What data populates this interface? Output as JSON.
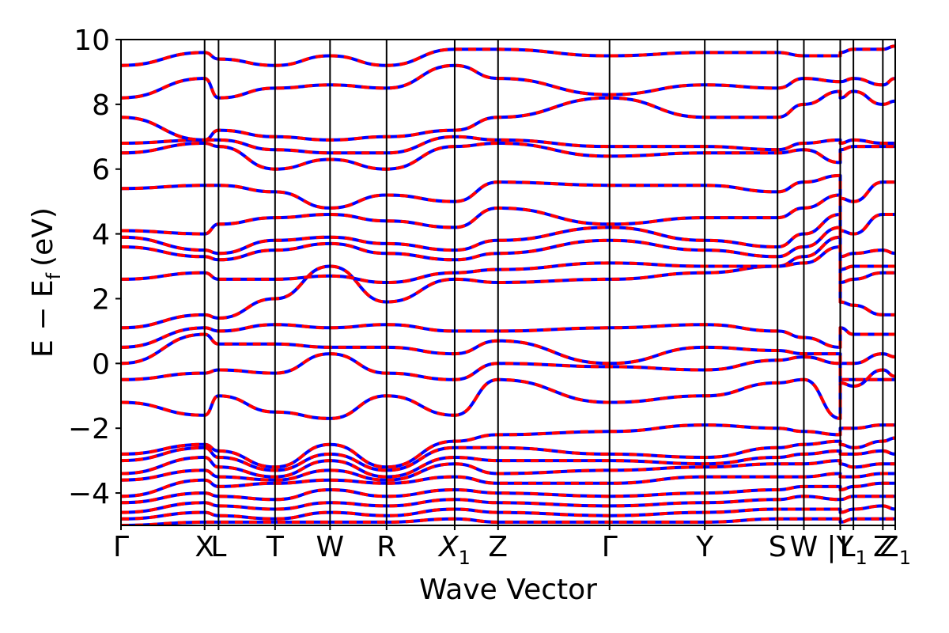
{
  "chart_data": {
    "type": "line",
    "xlabel": "Wave Vector",
    "ylabel": "E − E_f (eV)",
    "ylabel_main": "E − E",
    "ylabel_sub": "f",
    "ylabel_unit": "(eV)",
    "ylim": [
      -5,
      10
    ],
    "yticks": [
      {
        "value": -4,
        "label": "−4"
      },
      {
        "value": -2,
        "label": "−2"
      },
      {
        "value": 0,
        "label": "0"
      },
      {
        "value": 2,
        "label": "2"
      },
      {
        "value": 4,
        "label": "4"
      },
      {
        "value": 6,
        "label": "6"
      },
      {
        "value": 8,
        "label": "8"
      },
      {
        "value": 10,
        "label": "10"
      }
    ],
    "xlim": [
      0,
      100
    ],
    "kpoints": [
      {
        "pos": 0,
        "label": "Γ"
      },
      {
        "pos": 10.8,
        "label": "X"
      },
      {
        "pos": 12.6,
        "label": "L"
      },
      {
        "pos": 19.9,
        "label": "T"
      },
      {
        "pos": 27.0,
        "label": "W"
      },
      {
        "pos": 34.3,
        "label": "R"
      },
      {
        "pos": 43.1,
        "label": "X",
        "sub": "1"
      },
      {
        "pos": 48.7,
        "label": "Z"
      },
      {
        "pos": 63.1,
        "label": "Γ"
      },
      {
        "pos": 75.4,
        "label": "Y"
      },
      {
        "pos": 84.8,
        "label": "S"
      },
      {
        "pos": 88.2,
        "label": "W"
      },
      {
        "pos": 92.9,
        "label": "|Y"
      },
      {
        "pos": 94.6,
        "label": "L",
        "sub": "1"
      },
      {
        "pos": 98.4,
        "label": "Z"
      },
      {
        "pos": 100,
        "label": "Z",
        "sub": "1"
      }
    ],
    "grid": false,
    "legend": "none",
    "series_style": [
      {
        "color": "#0000ff",
        "width": 4,
        "dash": ""
      },
      {
        "color": "#ff0000",
        "width": 4,
        "dash": "10,8"
      }
    ],
    "bands": [
      {
        "name": "",
        "x": [
          0,
          10.8,
          12.6,
          19.9,
          27.0,
          34.3,
          43.1,
          48.7,
          63.1,
          75.4,
          84.8,
          88.2,
          92.9,
          92.9,
          94.6,
          98.4,
          100
        ],
        "y": [
          -1.2,
          -1.6,
          -1.0,
          -1.5,
          -1.7,
          -1.0,
          -1.6,
          -0.5,
          -1.2,
          -1.0,
          -0.6,
          -0.5,
          -1.7,
          -0.5,
          -0.5,
          -0.5,
          -0.5
        ]
      },
      {
        "name": "",
        "x": [
          0,
          10.8,
          12.6,
          19.9,
          27.0,
          34.3,
          43.1,
          48.7,
          63.1,
          75.4,
          84.8,
          88.2,
          92.9,
          92.9,
          94.6,
          98.4,
          100
        ],
        "y": [
          -0.5,
          -0.3,
          -0.2,
          -0.3,
          0.3,
          -0.3,
          -0.5,
          0.0,
          -0.1,
          -0.2,
          0.1,
          0.2,
          0.0,
          -0.6,
          -0.7,
          -0.2,
          -0.4
        ]
      },
      {
        "name": "",
        "x": [
          0,
          10.8,
          12.6,
          19.9,
          27.0,
          34.3,
          43.1,
          48.7,
          63.1,
          75.4,
          84.8,
          88.2,
          92.9,
          92.9,
          94.6,
          98.4,
          100
        ],
        "y": [
          0.0,
          0.9,
          0.6,
          0.6,
          0.5,
          0.5,
          0.3,
          0.7,
          0.0,
          0.5,
          0.4,
          0.3,
          0.3,
          0.0,
          0.0,
          0.3,
          0.2
        ]
      },
      {
        "name": "",
        "x": [
          0,
          10.8,
          12.6,
          19.9,
          27.0,
          34.3,
          43.1,
          48.7,
          63.1,
          75.4,
          84.8,
          88.2,
          92.9,
          92.9,
          94.6,
          98.4,
          100
        ],
        "y": [
          0.5,
          1.1,
          1.0,
          1.2,
          1.1,
          1.2,
          1.0,
          1.0,
          1.1,
          1.2,
          1.0,
          0.8,
          0.5,
          1.1,
          0.9,
          0.9,
          0.9
        ]
      },
      {
        "name": "",
        "x": [
          0,
          10.8,
          12.6,
          19.9,
          27.0,
          34.3,
          43.1,
          48.7,
          63.1,
          75.4,
          84.8,
          88.2,
          92.9,
          92.9,
          94.6,
          98.4,
          100
        ],
        "y": [
          1.1,
          1.5,
          1.4,
          2.0,
          3.0,
          1.9,
          2.6,
          2.5,
          2.6,
          2.8,
          3.0,
          3.3,
          3.9,
          1.9,
          1.8,
          1.5,
          1.5
        ]
      },
      {
        "name": "",
        "x": [
          0,
          10.8,
          12.6,
          19.9,
          27.0,
          34.3,
          43.1,
          48.7,
          63.1,
          75.4,
          84.8,
          88.2,
          92.9,
          92.9,
          94.6,
          98.4,
          100
        ],
        "y": [
          2.6,
          2.8,
          2.6,
          2.6,
          2.7,
          2.5,
          2.8,
          2.9,
          3.1,
          3.0,
          3.0,
          3.1,
          3.6,
          2.5,
          2.6,
          2.8,
          2.8
        ]
      },
      {
        "name": "",
        "x": [
          0,
          10.8,
          12.6,
          19.9,
          27.0,
          34.3,
          43.1,
          48.7,
          63.1,
          75.4,
          84.8,
          88.2,
          92.9,
          92.9,
          94.6,
          98.4,
          100
        ],
        "y": [
          3.6,
          3.3,
          3.2,
          3.5,
          3.7,
          3.4,
          3.2,
          3.4,
          3.8,
          3.5,
          3.3,
          3.6,
          4.2,
          2.9,
          3.0,
          3.0,
          3.0
        ]
      },
      {
        "name": "",
        "x": [
          0,
          10.8,
          12.6,
          19.9,
          27.0,
          34.3,
          43.1,
          48.7,
          63.1,
          75.4,
          84.8,
          88.2,
          92.9,
          92.9,
          94.6,
          98.4,
          100
        ],
        "y": [
          3.9,
          3.5,
          3.4,
          3.8,
          3.9,
          3.7,
          3.5,
          3.8,
          4.2,
          3.8,
          3.6,
          4.0,
          4.6,
          3.3,
          3.4,
          3.5,
          3.4
        ]
      },
      {
        "name": "",
        "x": [
          0,
          10.8,
          12.6,
          19.9,
          27.0,
          34.3,
          43.1,
          48.7,
          63.1,
          75.4,
          84.8,
          88.2,
          92.9,
          92.9,
          94.6,
          98.4,
          100
        ],
        "y": [
          4.1,
          4.0,
          4.3,
          4.5,
          4.6,
          4.4,
          4.2,
          4.8,
          4.3,
          4.5,
          4.5,
          4.8,
          5.2,
          4.1,
          4.0,
          4.6,
          4.6
        ]
      },
      {
        "name": "",
        "x": [
          0,
          10.8,
          12.6,
          19.9,
          27.0,
          34.3,
          43.1,
          48.7,
          63.1,
          75.4,
          84.8,
          88.2,
          92.9,
          92.9,
          94.6,
          98.4,
          100
        ],
        "y": [
          5.4,
          5.5,
          5.5,
          5.3,
          4.8,
          5.2,
          5.0,
          5.6,
          5.5,
          5.5,
          5.3,
          5.6,
          5.8,
          5.1,
          5.0,
          5.6,
          5.6
        ]
      },
      {
        "name": "",
        "x": [
          0,
          10.8,
          12.6,
          19.9,
          27.0,
          34.3,
          43.1,
          48.7,
          63.1,
          75.4,
          84.8,
          88.2,
          92.9,
          92.9,
          94.6,
          98.4,
          100
        ],
        "y": [
          6.5,
          6.8,
          6.7,
          6.0,
          6.3,
          6.0,
          6.7,
          6.8,
          6.4,
          6.5,
          6.5,
          6.6,
          6.2,
          6.6,
          6.7,
          6.7,
          6.7
        ]
      },
      {
        "name": "",
        "x": [
          0,
          10.8,
          12.6,
          19.9,
          27.0,
          34.3,
          43.1,
          48.7,
          63.1,
          75.4,
          84.8,
          88.2,
          92.9,
          92.9,
          94.6,
          98.4,
          100
        ],
        "y": [
          6.8,
          6.9,
          6.9,
          6.6,
          6.5,
          6.5,
          7.0,
          6.9,
          6.7,
          6.7,
          6.6,
          6.8,
          6.9,
          6.8,
          6.9,
          6.8,
          6.8
        ]
      },
      {
        "name": "",
        "x": [
          0,
          10.8,
          12.6,
          19.9,
          27.0,
          34.3,
          43.1,
          48.7,
          63.1,
          75.4,
          84.8,
          88.2,
          92.9,
          92.9,
          94.6,
          98.4,
          100
        ],
        "y": [
          7.6,
          6.9,
          7.2,
          7.0,
          6.9,
          7.0,
          7.2,
          7.6,
          8.2,
          7.6,
          7.6,
          8.0,
          8.4,
          8.2,
          8.4,
          8.0,
          8.1
        ]
      },
      {
        "name": "",
        "x": [
          0,
          10.8,
          12.6,
          19.9,
          27.0,
          34.3,
          43.1,
          48.7,
          63.1,
          75.4,
          84.8,
          88.2,
          92.9,
          92.9,
          94.6,
          98.4,
          100
        ],
        "y": [
          8.2,
          8.8,
          8.2,
          8.5,
          8.6,
          8.5,
          9.2,
          8.8,
          8.3,
          8.6,
          8.5,
          8.8,
          8.7,
          8.7,
          8.8,
          8.6,
          8.8
        ]
      },
      {
        "name": "",
        "x": [
          0,
          10.8,
          12.6,
          19.9,
          27.0,
          34.3,
          43.1,
          48.7,
          63.1,
          75.4,
          84.8,
          88.2,
          92.9,
          92.9,
          94.6,
          98.4,
          100
        ],
        "y": [
          9.2,
          9.6,
          9.4,
          9.2,
          9.5,
          9.2,
          9.7,
          9.7,
          9.5,
          9.6,
          9.6,
          9.5,
          9.5,
          9.6,
          9.7,
          9.7,
          9.8
        ]
      },
      {
        "name": "",
        "x": [
          0,
          10.8,
          12.6,
          19.9,
          27.0,
          34.3,
          43.1,
          48.7,
          63.1,
          75.4,
          84.8,
          88.2,
          92.9,
          92.9,
          94.6,
          98.4,
          100
        ],
        "y": [
          -2.8,
          -2.5,
          -2.7,
          -3.2,
          -2.5,
          -3.2,
          -2.4,
          -2.2,
          -2.1,
          -1.9,
          -2.0,
          -2.1,
          -2.2,
          -2.0,
          -2.0,
          -1.9,
          -1.9
        ]
      },
      {
        "name": "",
        "x": [
          0,
          10.8,
          12.6,
          19.9,
          27.0,
          34.3,
          43.1,
          48.7,
          63.1,
          75.4,
          84.8,
          88.2,
          92.9,
          92.9,
          94.6,
          98.4,
          100
        ],
        "y": [
          -3.0,
          -2.6,
          -2.9,
          -3.3,
          -2.8,
          -3.3,
          -2.6,
          -2.6,
          -2.8,
          -2.9,
          -2.6,
          -2.5,
          -2.4,
          -2.5,
          -2.6,
          -2.4,
          -2.3
        ]
      },
      {
        "name": "",
        "x": [
          0,
          10.8,
          12.6,
          19.9,
          27.0,
          34.3,
          43.1,
          48.7,
          63.1,
          75.4,
          84.8,
          88.2,
          92.9,
          92.9,
          94.6,
          98.4,
          100
        ],
        "y": [
          -3.4,
          -2.9,
          -3.2,
          -3.5,
          -3.0,
          -3.5,
          -2.9,
          -3.0,
          -3.0,
          -3.1,
          -2.9,
          -2.8,
          -2.7,
          -2.8,
          -2.8,
          -2.7,
          -2.8
        ]
      },
      {
        "name": "",
        "x": [
          0,
          10.8,
          12.6,
          19.9,
          27.0,
          34.3,
          43.1,
          48.7,
          63.1,
          75.4,
          84.8,
          88.2,
          92.9,
          92.9,
          94.6,
          98.4,
          100
        ],
        "y": [
          -3.6,
          -3.3,
          -3.5,
          -3.6,
          -3.3,
          -3.6,
          -3.1,
          -3.4,
          -3.3,
          -3.2,
          -3.1,
          -3.1,
          -3.0,
          -3.1,
          -3.2,
          -3.1,
          -3.1
        ]
      },
      {
        "name": "",
        "x": [
          0,
          10.8,
          12.6,
          19.9,
          27.0,
          34.3,
          43.1,
          48.7,
          63.1,
          75.4,
          84.8,
          88.2,
          92.9,
          92.9,
          94.6,
          98.4,
          100
        ],
        "y": [
          -4.1,
          -3.6,
          -3.8,
          -3.7,
          -3.6,
          -3.7,
          -3.5,
          -3.7,
          -3.7,
          -3.5,
          -3.5,
          -3.5,
          -3.4,
          -3.5,
          -3.5,
          -3.4,
          -3.4
        ]
      },
      {
        "name": "",
        "x": [
          0,
          10.8,
          12.6,
          19.9,
          27.0,
          34.3,
          43.1,
          48.7,
          63.1,
          75.4,
          84.8,
          88.2,
          92.9,
          92.9,
          94.6,
          98.4,
          100
        ],
        "y": [
          -4.3,
          -4.0,
          -4.1,
          -4.2,
          -3.9,
          -4.1,
          -3.9,
          -4.0,
          -4.1,
          -4.0,
          -3.9,
          -3.8,
          -3.8,
          -3.9,
          -3.8,
          -3.7,
          -3.7
        ]
      },
      {
        "name": "",
        "x": [
          0,
          10.8,
          12.6,
          19.9,
          27.0,
          34.3,
          43.1,
          48.7,
          63.1,
          75.4,
          84.8,
          88.2,
          92.9,
          92.9,
          94.6,
          98.4,
          100
        ],
        "y": [
          -4.6,
          -4.3,
          -4.4,
          -4.5,
          -4.3,
          -4.4,
          -4.2,
          -4.3,
          -4.4,
          -4.3,
          -4.2,
          -4.1,
          -4.2,
          -4.2,
          -4.1,
          -4.1,
          -4.1
        ]
      },
      {
        "name": "",
        "x": [
          0,
          10.8,
          12.6,
          19.9,
          27.0,
          34.3,
          43.1,
          48.7,
          63.1,
          75.4,
          84.8,
          88.2,
          92.9,
          92.9,
          94.6,
          98.4,
          100
        ],
        "y": [
          -4.8,
          -4.6,
          -4.7,
          -4.8,
          -4.6,
          -4.7,
          -4.5,
          -4.6,
          -4.7,
          -4.6,
          -4.5,
          -4.5,
          -4.5,
          -4.6,
          -4.5,
          -4.4,
          -4.5
        ]
      },
      {
        "name": "",
        "x": [
          0,
          10.8,
          12.6,
          19.9,
          27.0,
          34.3,
          43.1,
          48.7,
          63.1,
          75.4,
          84.8,
          88.2,
          92.9,
          92.9,
          94.6,
          98.4,
          100
        ],
        "y": [
          -5.0,
          -4.9,
          -4.9,
          -4.9,
          -4.9,
          -4.9,
          -4.8,
          -4.9,
          -4.9,
          -4.9,
          -4.8,
          -4.8,
          -4.8,
          -4.9,
          -4.8,
          -4.8,
          -4.8
        ]
      }
    ]
  }
}
